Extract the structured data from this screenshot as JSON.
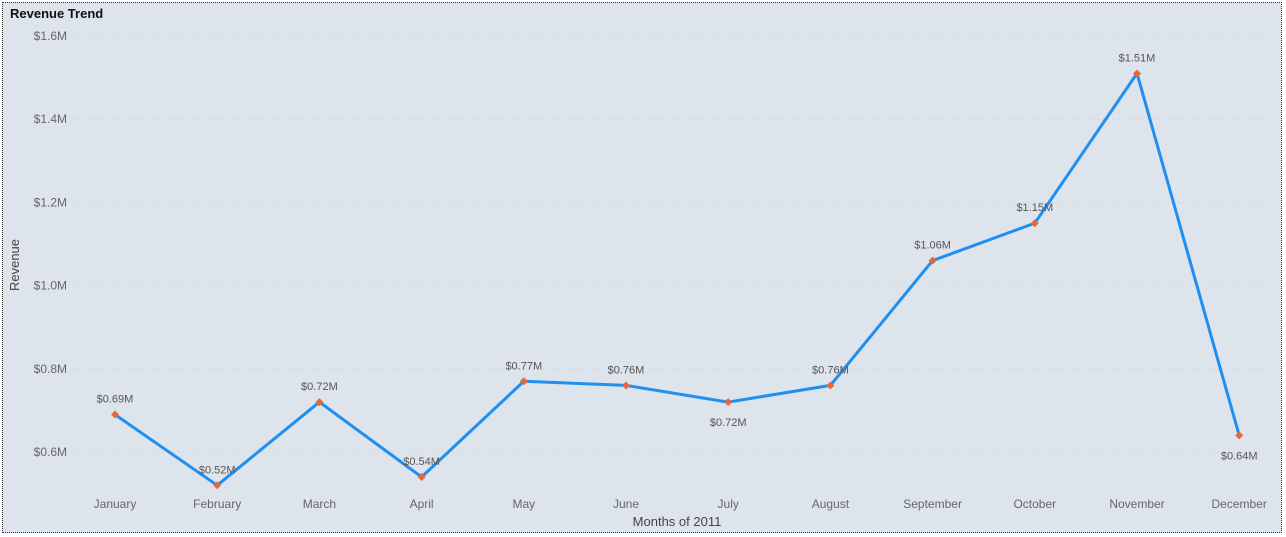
{
  "chart_data": {
    "type": "line",
    "title": "Revenue Trend",
    "xlabel": "Months of 2011",
    "ylabel": "Revenue",
    "categories": [
      "January",
      "February",
      "March",
      "April",
      "May",
      "June",
      "July",
      "August",
      "September",
      "October",
      "November",
      "December"
    ],
    "values": [
      0.69,
      0.52,
      0.72,
      0.54,
      0.77,
      0.76,
      0.72,
      0.76,
      1.06,
      1.15,
      1.51,
      0.64
    ],
    "data_labels": [
      "$0.69M",
      "$0.52M",
      "$0.72M",
      "$0.54M",
      "$0.77M",
      "$0.76M",
      "$0.72M",
      "$0.76M",
      "$1.06M",
      "$1.15M",
      "$1.51M",
      "$0.64M"
    ],
    "y_ticks": [
      0.6,
      0.8,
      1.0,
      1.2,
      1.4,
      1.6
    ],
    "y_tick_labels": [
      "$0.6M",
      "$0.8M",
      "$1.0M",
      "$1.2M",
      "$1.4M",
      "$1.6M"
    ],
    "ylim": [
      0.5,
      1.6
    ],
    "grid": true,
    "line_color": "#1f8ff0",
    "marker_color": "#e8663a"
  }
}
